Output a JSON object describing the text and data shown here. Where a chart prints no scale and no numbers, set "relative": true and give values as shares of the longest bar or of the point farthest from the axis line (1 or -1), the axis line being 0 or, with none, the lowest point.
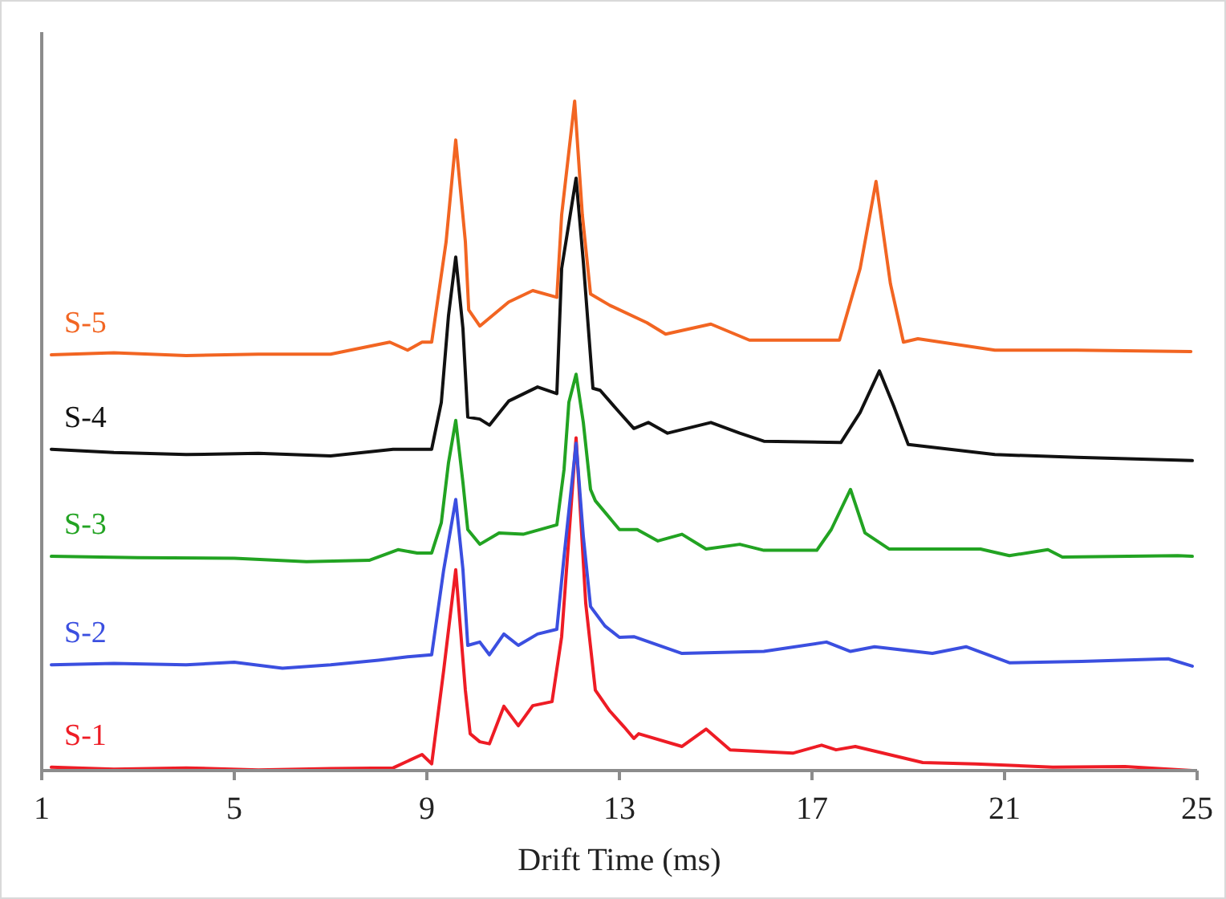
{
  "chart_data": {
    "type": "line",
    "xlabel": "Drift Time (ms)",
    "relative": true,
    "xlim": [
      1,
      25
    ],
    "xticks": [
      1,
      5,
      9,
      13,
      17,
      21,
      25
    ],
    "legend": false,
    "grid": false,
    "marker": "none",
    "line_style": "solid",
    "series": [
      {
        "name": "S-1",
        "color": "#ee1c25",
        "x": [
          1.2,
          2.5,
          4,
          5.5,
          7,
          8.3,
          8.9,
          9.1,
          9.35,
          9.6,
          9.8,
          9.9,
          10.1,
          10.3,
          10.6,
          10.9,
          11.2,
          11.6,
          11.8,
          12.1,
          12.3,
          12.5,
          12.8,
          13.1,
          13.3,
          13.4,
          14.3,
          14.8,
          15.3,
          16.6,
          17.2,
          17.5,
          17.9,
          19.3,
          20.4,
          22,
          23.5,
          24.9
        ],
        "values": [
          0.005,
          0.002,
          0.004,
          0.001,
          0.003,
          0.004,
          0.024,
          0.01,
          0.15,
          0.3,
          0.12,
          0.055,
          0.043,
          0.04,
          0.096,
          0.067,
          0.097,
          0.103,
          0.2,
          0.497,
          0.25,
          0.12,
          0.089,
          0.065,
          0.048,
          0.055,
          0.036,
          0.062,
          0.031,
          0.026,
          0.038,
          0.031,
          0.036,
          0.012,
          0.01,
          0.005,
          0.006,
          0
        ]
      },
      {
        "name": "S-2",
        "color": "#3b4fe0",
        "x": [
          1.2,
          2.5,
          4,
          5,
          6,
          7,
          8,
          8.6,
          9.1,
          9.35,
          9.6,
          9.75,
          9.85,
          10.1,
          10.3,
          10.6,
          10.9,
          11.3,
          11.7,
          11.85,
          12.1,
          12.25,
          12.4,
          12.7,
          13,
          13.3,
          14.3,
          16,
          17.3,
          17.8,
          18.3,
          19.5,
          20.2,
          21.1,
          22.6,
          24.4,
          24.9
        ],
        "values": [
          0.158,
          0.16,
          0.158,
          0.162,
          0.153,
          0.158,
          0.165,
          0.17,
          0.173,
          0.3,
          0.405,
          0.3,
          0.187,
          0.192,
          0.173,
          0.204,
          0.187,
          0.204,
          0.211,
          0.32,
          0.489,
          0.35,
          0.245,
          0.216,
          0.199,
          0.2,
          0.175,
          0.178,
          0.192,
          0.178,
          0.185,
          0.175,
          0.185,
          0.161,
          0.163,
          0.167,
          0.156
        ]
      },
      {
        "name": "S-3",
        "color": "#22a322",
        "x": [
          1.2,
          3,
          5,
          6.5,
          7.8,
          8.4,
          8.8,
          9.1,
          9.3,
          9.45,
          9.6,
          9.75,
          9.85,
          10.1,
          10.5,
          11,
          11.7,
          11.85,
          11.95,
          12.1,
          12.25,
          12.4,
          12.5,
          13,
          13.37,
          13.8,
          14.3,
          14.8,
          15.5,
          16,
          17.1,
          17.4,
          17.8,
          18.1,
          18.6,
          20.5,
          21.1,
          21.9,
          22.2,
          24.6,
          24.9
        ],
        "values": [
          0.32,
          0.318,
          0.317,
          0.312,
          0.314,
          0.33,
          0.325,
          0.325,
          0.37,
          0.46,
          0.523,
          0.43,
          0.36,
          0.338,
          0.355,
          0.353,
          0.367,
          0.45,
          0.55,
          0.592,
          0.52,
          0.42,
          0.403,
          0.36,
          0.36,
          0.343,
          0.353,
          0.331,
          0.338,
          0.329,
          0.329,
          0.36,
          0.42,
          0.355,
          0.331,
          0.331,
          0.321,
          0.33,
          0.319,
          0.321,
          0.32
        ]
      },
      {
        "name": "S-4",
        "color": "#111111",
        "x": [
          1.2,
          2.5,
          4,
          5.5,
          7,
          8.3,
          9.1,
          9.3,
          9.45,
          9.6,
          9.75,
          9.85,
          10.1,
          10.3,
          10.7,
          11.3,
          11.7,
          11.8,
          12.1,
          12.25,
          12.45,
          12.6,
          13,
          13.3,
          13.6,
          14,
          14.9,
          15.5,
          16,
          17.6,
          18,
          18.4,
          18.7,
          19,
          20.8,
          22.5,
          24.9
        ],
        "values": [
          0.48,
          0.475,
          0.472,
          0.474,
          0.47,
          0.48,
          0.48,
          0.55,
          0.68,
          0.767,
          0.66,
          0.528,
          0.525,
          0.516,
          0.552,
          0.573,
          0.563,
          0.75,
          0.885,
          0.76,
          0.571,
          0.568,
          0.535,
          0.511,
          0.52,
          0.504,
          0.52,
          0.504,
          0.492,
          0.49,
          0.535,
          0.597,
          0.544,
          0.487,
          0.472,
          0.468,
          0.463
        ]
      },
      {
        "name": "S-5",
        "color": "#f26522",
        "x": [
          1.2,
          2.5,
          4,
          5.5,
          7,
          8.23,
          8.6,
          8.9,
          9.1,
          9.4,
          9.6,
          9.8,
          9.87,
          10.1,
          10.7,
          11.2,
          11.7,
          11.8,
          12.07,
          12.23,
          12.4,
          12.8,
          13.57,
          13.96,
          14.9,
          15.7,
          17.57,
          18,
          18.33,
          18.63,
          18.9,
          19.2,
          20.8,
          22.5,
          24.87
        ],
        "values": [
          0.621,
          0.624,
          0.62,
          0.622,
          0.622,
          0.64,
          0.628,
          0.64,
          0.64,
          0.79,
          0.942,
          0.79,
          0.688,
          0.664,
          0.7,
          0.717,
          0.707,
          0.83,
          1,
          0.83,
          0.712,
          0.695,
          0.669,
          0.652,
          0.667,
          0.643,
          0.643,
          0.75,
          0.88,
          0.727,
          0.64,
          0.645,
          0.628,
          0.628,
          0.626
        ]
      }
    ]
  }
}
